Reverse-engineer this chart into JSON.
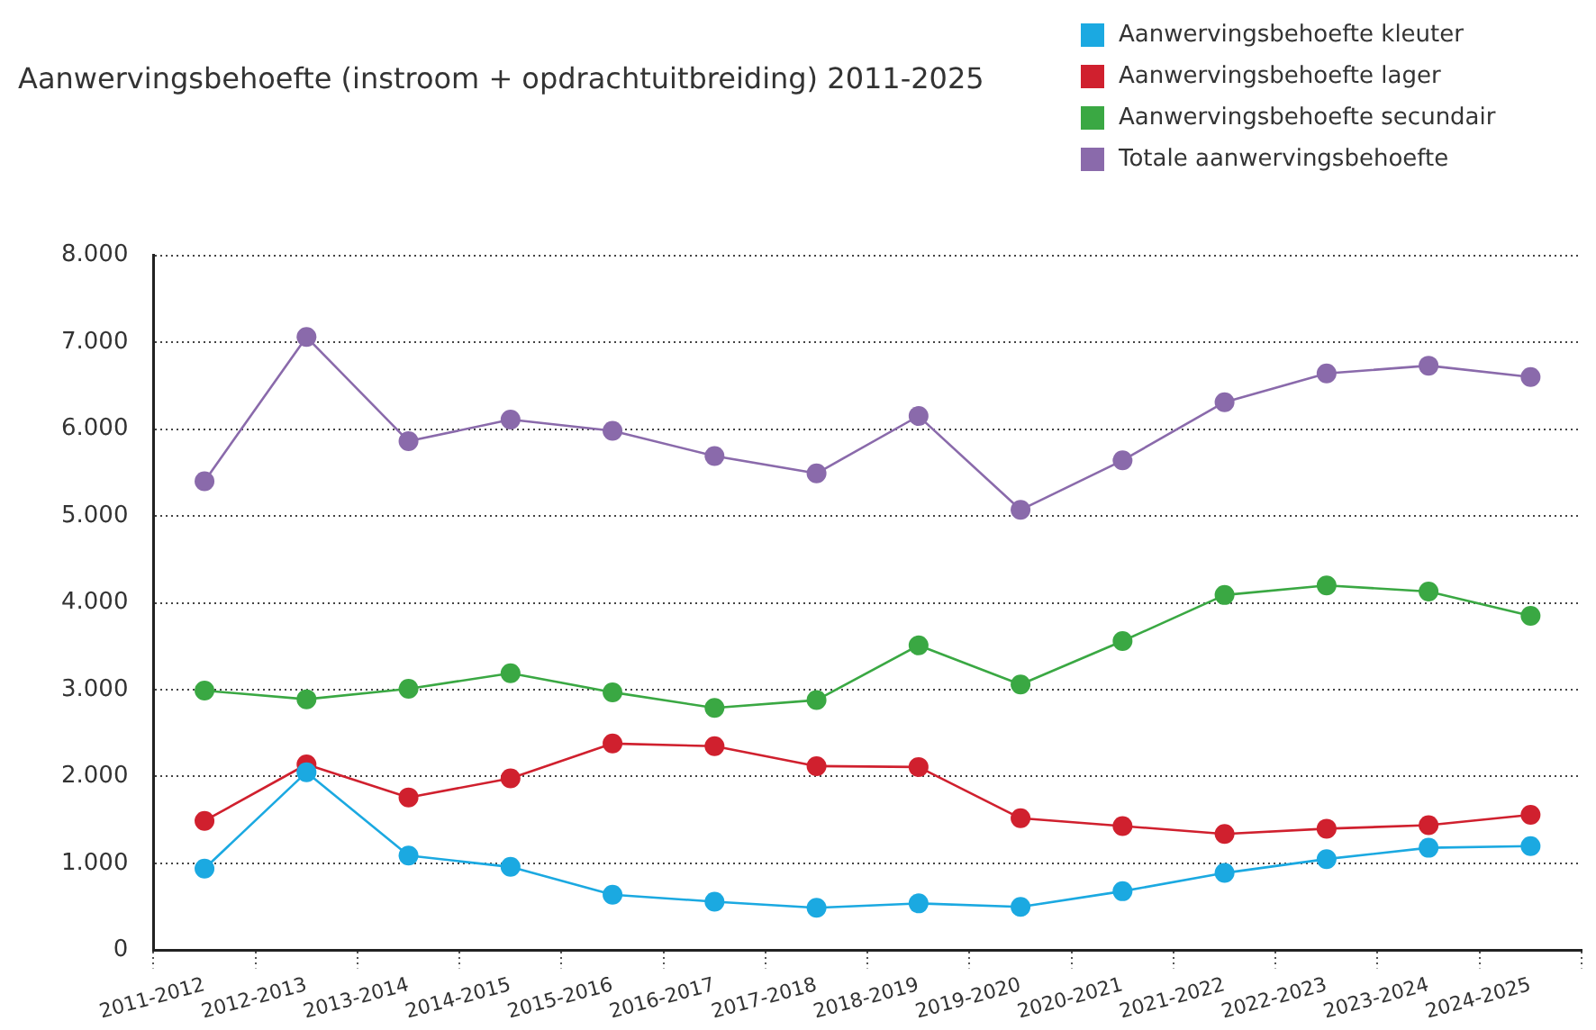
{
  "chart_data": {
    "type": "line",
    "title": "Aanwervingsbehoefte (instroom + opdrachtuitbreiding) 2011-2025",
    "categories": [
      "2011-2012",
      "2012-2013",
      "2013-2014",
      "2014-2015",
      "2015-2016",
      "2016-2017",
      "2017-2018",
      "2018-2019",
      "2019-2020",
      "2020-2021",
      "2021-2022",
      "2022-2023",
      "2023-2024",
      "2024-2025"
    ],
    "series": [
      {
        "name": "Aanwervingsbehoefte kleuter",
        "color": "#1ba9e1",
        "values": [
          940,
          2050,
          1090,
          960,
          640,
          560,
          490,
          540,
          500,
          680,
          890,
          1050,
          1180,
          1200
        ]
      },
      {
        "name": "Aanwervingsbehoefte lager",
        "color": "#d0202e",
        "values": [
          1490,
          2140,
          1760,
          1980,
          2380,
          2350,
          2120,
          2110,
          1520,
          1430,
          1340,
          1400,
          1440,
          1560
        ]
      },
      {
        "name": "Aanwervingsbehoefte secundair",
        "color": "#3aa843",
        "values": [
          2990,
          2890,
          3010,
          3190,
          2970,
          2790,
          2880,
          3510,
          3060,
          3560,
          4090,
          4200,
          4130,
          3850
        ]
      },
      {
        "name": "Totale aanwervingsbehoefte",
        "color": "#8a6aab",
        "values": [
          5400,
          7060,
          5860,
          6110,
          5980,
          5690,
          5490,
          6150,
          5070,
          5640,
          6310,
          6640,
          6730,
          6600
        ]
      }
    ],
    "ylim": [
      0,
      8000
    ],
    "yticks": [
      0,
      {
        "value": 1000,
        "label": "1.000"
      },
      {
        "value": 2000,
        "label": "2.000"
      },
      {
        "value": 3000,
        "label": "3.000"
      },
      {
        "value": 4000,
        "label": "4.000"
      },
      {
        "value": 5000,
        "label": "5.000"
      },
      {
        "value": 6000,
        "label": "6.000"
      },
      {
        "value": 7000,
        "label": "7.000"
      },
      {
        "value": 8000,
        "label": "8.000"
      }
    ],
    "grid": "y",
    "legend": "top right",
    "marker": "circle",
    "line_style": "solid"
  }
}
